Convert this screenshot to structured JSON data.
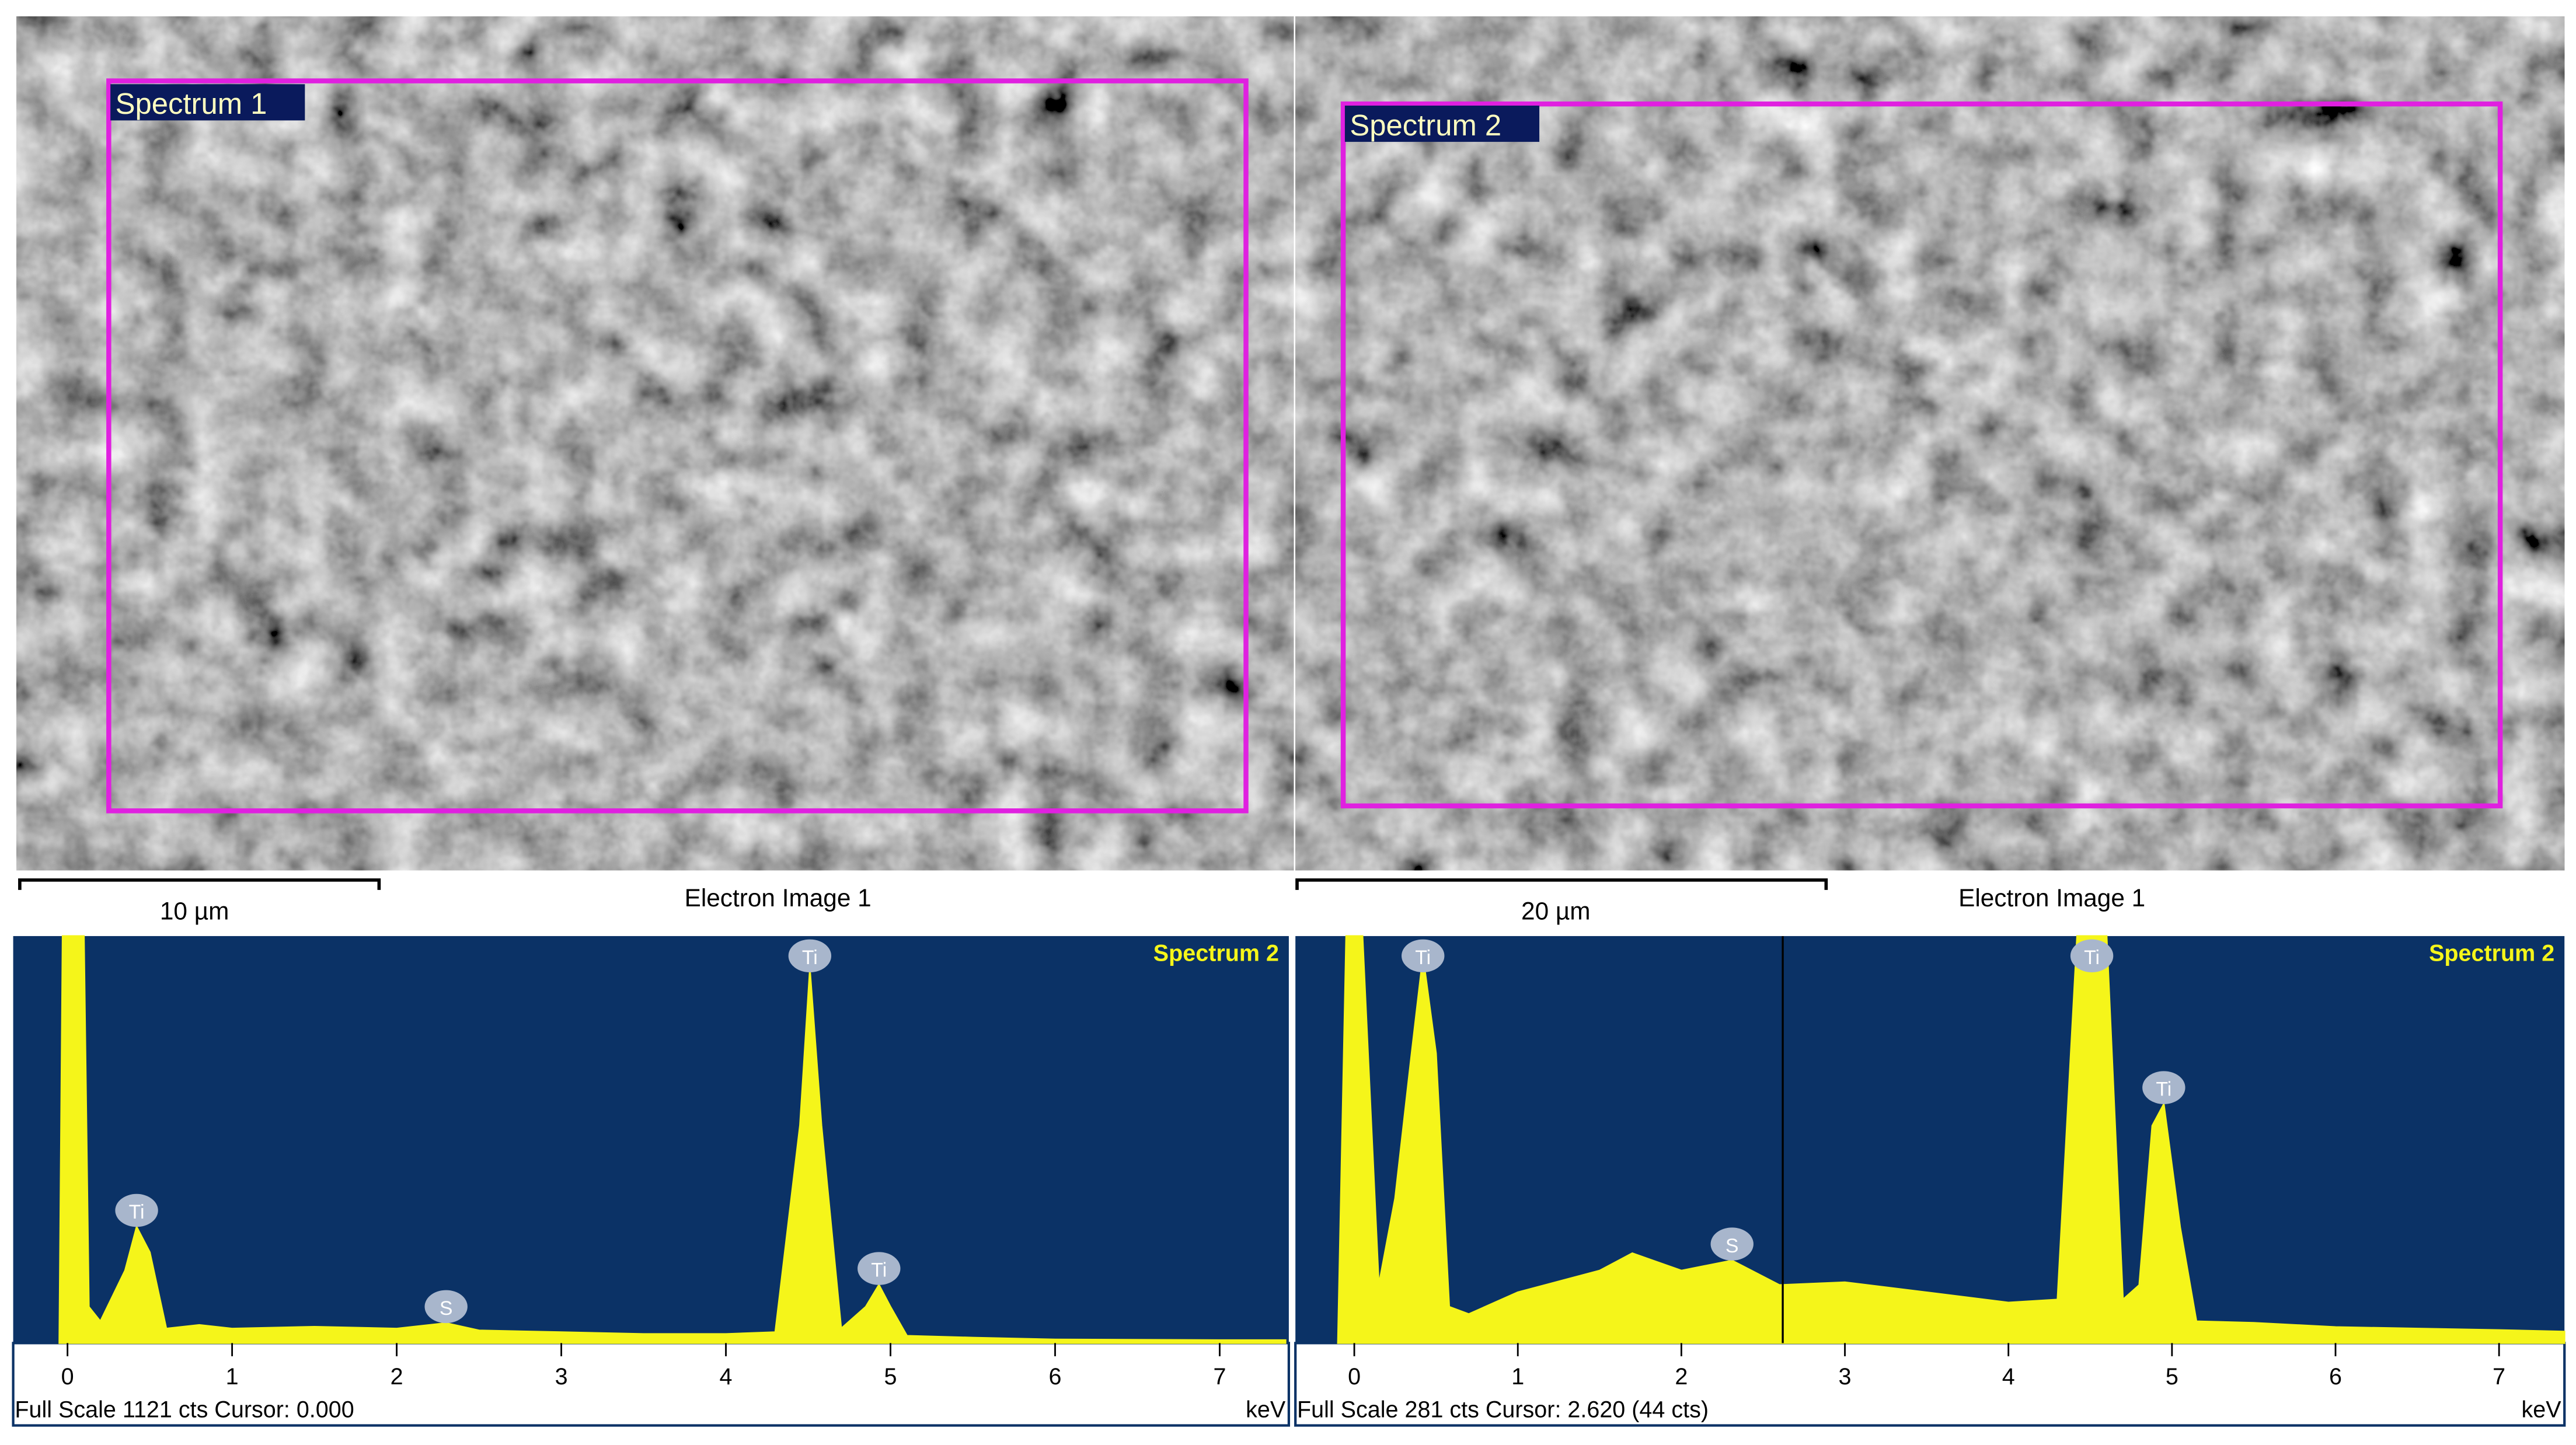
{
  "images": [
    {
      "label": "Spectrum 1",
      "scale_bar": "10 µm",
      "caption": "Electron Image 1"
    },
    {
      "label": "Spectrum 2",
      "scale_bar": "20 µm",
      "caption": "Electron Image 1"
    }
  ],
  "spectra": [
    {
      "type": "line",
      "title": "Spectrum 2",
      "unit": "keV",
      "status": "Full Scale 1121 cts Cursor: 0.000",
      "xlim": [
        -0.33,
        7.42
      ],
      "ylim": [
        0,
        1121
      ],
      "xticks": [
        0,
        1,
        2,
        3,
        4,
        5,
        6,
        7
      ],
      "x": [
        -0.05,
        -0.03,
        0.1,
        0.13,
        0.2,
        0.35,
        0.42,
        0.5,
        0.6,
        0.8,
        1.0,
        1.5,
        2.0,
        2.3,
        2.5,
        3.0,
        3.5,
        4.0,
        4.3,
        4.45,
        4.51,
        4.58,
        4.7,
        4.85,
        4.93,
        5.0,
        5.1,
        5.5,
        6.0,
        7.0,
        7.4
      ],
      "values": [
        0,
        1121,
        1121,
        100,
        60,
        200,
        320,
        250,
        40,
        50,
        40,
        45,
        40,
        55,
        35,
        30,
        25,
        25,
        30,
        600,
        1030,
        600,
        40,
        100,
        160,
        100,
        20,
        15,
        10,
        8,
        8
      ],
      "peaks": [
        {
          "label": "Ti",
          "x": 0.42,
          "y": 320
        },
        {
          "label": "S",
          "x": 2.3,
          "y": 55
        },
        {
          "label": "Ti",
          "x": 4.51,
          "y": 1030
        },
        {
          "label": "Ti",
          "x": 4.93,
          "y": 160
        }
      ]
    },
    {
      "type": "line",
      "title": "Spectrum 2",
      "unit": "keV",
      "status": "Full Scale 281 cts Cursor: 2.620  (44 cts)",
      "cursor": 2.62,
      "xlim": [
        -0.36,
        7.4
      ],
      "ylim": [
        0,
        281
      ],
      "xticks": [
        0,
        1,
        2,
        3,
        4,
        5,
        6,
        7
      ],
      "x": [
        -0.1,
        -0.05,
        0.05,
        0.15,
        0.25,
        0.35,
        0.42,
        0.5,
        0.58,
        0.7,
        1.0,
        1.5,
        1.7,
        2.0,
        2.31,
        2.6,
        3.0,
        3.5,
        4.0,
        4.3,
        4.42,
        4.6,
        4.7,
        4.8,
        4.88,
        4.95,
        5.05,
        5.15,
        5.5,
        6.0,
        7.0,
        7.4
      ],
      "values": [
        0,
        281,
        281,
        40,
        100,
        200,
        267,
        200,
        25,
        20,
        35,
        50,
        62,
        50,
        57,
        40,
        42,
        35,
        28,
        30,
        281,
        281,
        30,
        40,
        150,
        165,
        80,
        15,
        14,
        11,
        9,
        8
      ],
      "peaks": [
        {
          "label": "Ti",
          "x": 0.42,
          "y": 267
        },
        {
          "label": "S",
          "x": 2.31,
          "y": 57
        },
        {
          "label": "Ti",
          "x": 4.51,
          "y": 281
        },
        {
          "label": "Ti",
          "x": 4.95,
          "y": 165
        }
      ]
    }
  ]
}
